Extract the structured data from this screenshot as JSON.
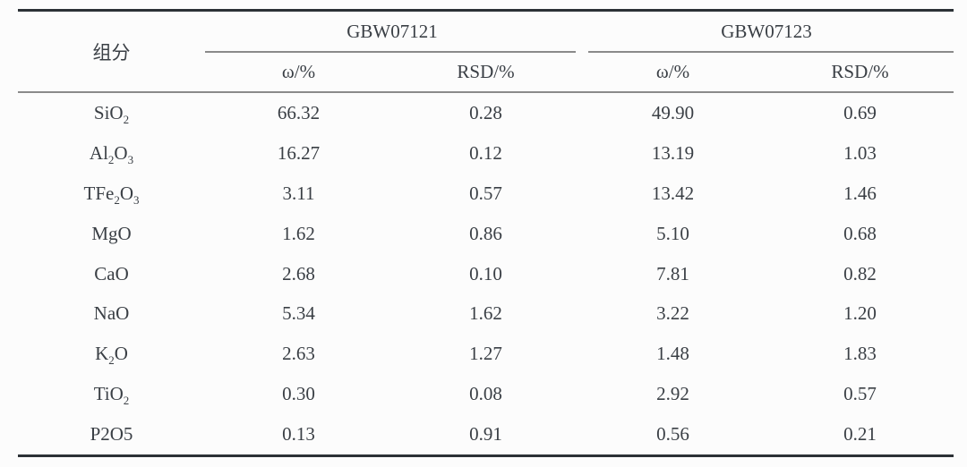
{
  "table": {
    "header": {
      "component_label": "组分",
      "groups": [
        {
          "label": "GBW07121",
          "subcolumns": [
            "ω/%",
            "RSD/%"
          ]
        },
        {
          "label": "GBW07123",
          "subcolumns": [
            "ω/%",
            "RSD/%"
          ]
        }
      ]
    },
    "rows": [
      {
        "component": [
          {
            "text": "SiO"
          },
          {
            "text": "2",
            "sub": true
          }
        ],
        "values": [
          "66.32",
          "0.28",
          "49.90",
          "0.69"
        ]
      },
      {
        "component": [
          {
            "text": "Al"
          },
          {
            "text": "2",
            "sub": true
          },
          {
            "text": "O"
          },
          {
            "text": "3",
            "sub": true
          }
        ],
        "values": [
          "16.27",
          "0.12",
          "13.19",
          "1.03"
        ]
      },
      {
        "component": [
          {
            "text": "TFe"
          },
          {
            "text": "2",
            "sub": true
          },
          {
            "text": "O"
          },
          {
            "text": "3",
            "sub": true
          }
        ],
        "values": [
          "3.11",
          "0.57",
          "13.42",
          "1.46"
        ]
      },
      {
        "component": [
          {
            "text": "MgO"
          }
        ],
        "values": [
          "1.62",
          "0.86",
          "5.10",
          "0.68"
        ]
      },
      {
        "component": [
          {
            "text": "CaO"
          }
        ],
        "values": [
          "2.68",
          "0.10",
          "7.81",
          "0.82"
        ]
      },
      {
        "component": [
          {
            "text": "NaO"
          }
        ],
        "values": [
          "5.34",
          "1.62",
          "3.22",
          "1.20"
        ]
      },
      {
        "component": [
          {
            "text": "K"
          },
          {
            "text": "2",
            "sub": true
          },
          {
            "text": "O"
          }
        ],
        "values": [
          "2.63",
          "1.27",
          "1.48",
          "1.83"
        ]
      },
      {
        "component": [
          {
            "text": "TiO"
          },
          {
            "text": "2",
            "sub": true
          }
        ],
        "values": [
          "0.30",
          "0.08",
          "2.92",
          "0.57"
        ]
      },
      {
        "component": [
          {
            "text": "P2O5"
          }
        ],
        "values": [
          "0.13",
          "0.91",
          "0.56",
          "0.21"
        ]
      }
    ],
    "colors": {
      "text": "#3a3f45",
      "border_heavy": "#2c3136",
      "border_light": "#8a8a8a",
      "background": "#fcfcfc"
    }
  }
}
